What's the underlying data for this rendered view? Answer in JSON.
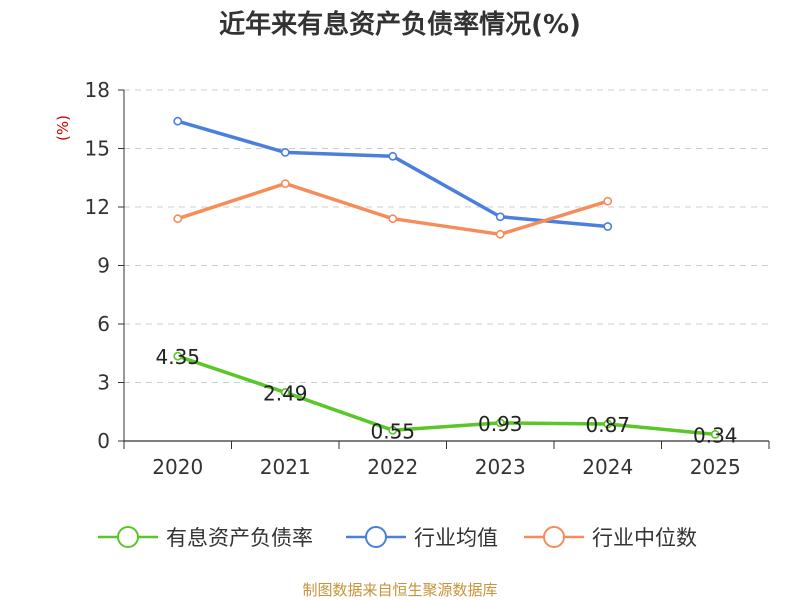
{
  "chart_data": {
    "type": "line",
    "title": "近年来有息资产负债率情况(%)",
    "ylabel": "(%)",
    "categories": [
      "2020",
      "2021",
      "2022",
      "2023",
      "2024",
      "2025"
    ],
    "ylim": [
      0,
      18
    ],
    "yticks": [
      "0",
      "3",
      "6",
      "9",
      "12",
      "15",
      "18"
    ],
    "grid": true,
    "legend_position": "bottom",
    "series": [
      {
        "name": "有息资产负债率",
        "color": "#5ac628",
        "values": [
          4.35,
          2.49,
          0.55,
          0.93,
          0.87,
          0.34
        ],
        "labels": [
          "4.35",
          "2.49",
          "0.55",
          "0.93",
          "0.87",
          "0.34"
        ]
      },
      {
        "name": "行业均值",
        "color": "#4a7fdc",
        "values": [
          16.4,
          14.8,
          14.6,
          11.5,
          11.0,
          null
        ]
      },
      {
        "name": "行业中位数",
        "color": "#f58d5a",
        "values": [
          11.4,
          13.2,
          11.4,
          10.6,
          12.3,
          null
        ]
      }
    ]
  },
  "colors": {
    "ylabel": "#cc0000",
    "source": "#c8933a",
    "grid": "#cccccc",
    "axis": "#333333"
  },
  "source_text": "制图数据来自恒生聚源数据库"
}
